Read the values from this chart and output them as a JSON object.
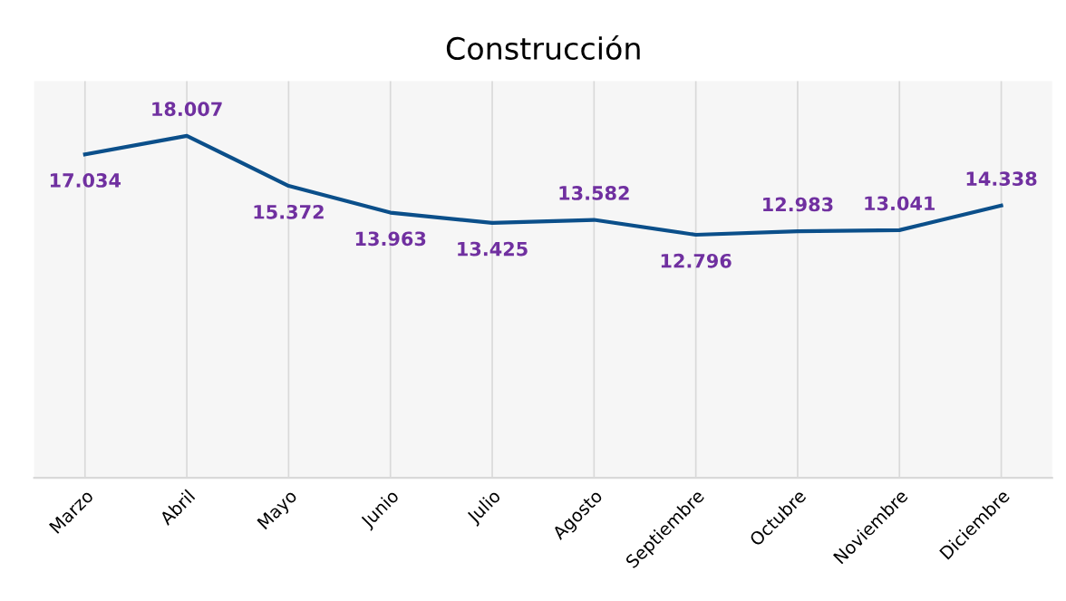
{
  "chart_data": {
    "type": "line",
    "title": "Construcción",
    "categories": [
      "Marzo",
      "Abril",
      "Mayo",
      "Junio",
      "Julio",
      "Agosto",
      "Septiembre",
      "Octubre",
      "Noviembre",
      "Diciembre"
    ],
    "series": [
      {
        "color": "#0b4f8a",
        "values": [
          17.034,
          18.007,
          15.372,
          13.963,
          13.425,
          13.582,
          12.796,
          12.983,
          13.041,
          14.338
        ]
      }
    ],
    "data_labels": true,
    "grid": "x",
    "legend": false,
    "marker": "none",
    "line_style": "solid"
  }
}
